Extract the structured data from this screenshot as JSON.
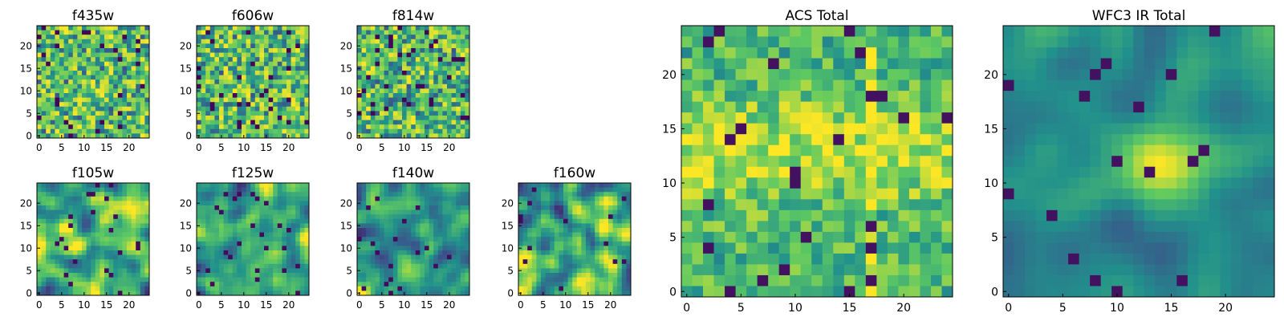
{
  "figure": {
    "colormap": [
      "#440154",
      "#3b528b",
      "#21918c",
      "#5ec962",
      "#fde725"
    ],
    "pixel_grid": 25
  },
  "chart_data": [
    {
      "type": "heatmap",
      "title": "f435w",
      "xticks": [
        "0",
        "5",
        "10",
        "15",
        "20"
      ],
      "yticks": [
        "0",
        "5",
        "10",
        "15",
        "20"
      ],
      "xlim": [
        0,
        25
      ],
      "ylim": [
        0,
        25
      ],
      "texture": "noise",
      "seed": 11
    },
    {
      "type": "heatmap",
      "title": "f606w",
      "xticks": [
        "0",
        "5",
        "10",
        "15",
        "20"
      ],
      "yticks": [
        "0",
        "5",
        "10",
        "15",
        "20"
      ],
      "xlim": [
        0,
        25
      ],
      "ylim": [
        0,
        25
      ],
      "texture": "noise",
      "seed": 23
    },
    {
      "type": "heatmap",
      "title": "f814w",
      "xticks": [
        "0",
        "5",
        "10",
        "15",
        "20"
      ],
      "yticks": [
        "0",
        "5",
        "10",
        "15",
        "20"
      ],
      "xlim": [
        0,
        25
      ],
      "ylim": [
        0,
        25
      ],
      "texture": "noise",
      "seed": 37
    },
    {
      "type": "heatmap",
      "title": "f105w",
      "xticks": [
        "0",
        "5",
        "10",
        "15",
        "20"
      ],
      "yticks": [
        "0",
        "5",
        "10",
        "15",
        "20"
      ],
      "xlim": [
        0,
        25
      ],
      "ylim": [
        0,
        25
      ],
      "texture": "smooth",
      "seed": 41
    },
    {
      "type": "heatmap",
      "title": "f125w",
      "xticks": [
        "0",
        "5",
        "10",
        "15",
        "20"
      ],
      "yticks": [
        "0",
        "5",
        "10",
        "15",
        "20"
      ],
      "xlim": [
        0,
        25
      ],
      "ylim": [
        0,
        25
      ],
      "texture": "smooth",
      "seed": 53
    },
    {
      "type": "heatmap",
      "title": "f140w",
      "xticks": [
        "0",
        "5",
        "10",
        "15",
        "20"
      ],
      "yticks": [
        "0",
        "5",
        "10",
        "15",
        "20"
      ],
      "xlim": [
        0,
        25
      ],
      "ylim": [
        0,
        25
      ],
      "texture": "smooth",
      "seed": 67
    },
    {
      "type": "heatmap",
      "title": "f160w",
      "xticks": [
        "0",
        "5",
        "10",
        "15",
        "20"
      ],
      "yticks": [
        "0",
        "5",
        "10",
        "15",
        "20"
      ],
      "xlim": [
        0,
        25
      ],
      "ylim": [
        0,
        25
      ],
      "texture": "smooth",
      "seed": 79
    },
    {
      "type": "heatmap",
      "title": "ACS Total",
      "xticks": [
        "0",
        "5",
        "10",
        "15",
        "20"
      ],
      "yticks": [
        "0",
        "5",
        "10",
        "15",
        "20"
      ],
      "xlim": [
        0,
        25
      ],
      "ylim": [
        0,
        25
      ],
      "texture": "acs",
      "seed": 83
    },
    {
      "type": "heatmap",
      "title": "WFC3 IR Total",
      "xticks": [
        "0",
        "5",
        "10",
        "15",
        "20"
      ],
      "yticks": [
        "0",
        "5",
        "10",
        "15",
        "20"
      ],
      "xlim": [
        0,
        25
      ],
      "ylim": [
        0,
        25
      ],
      "texture": "ir",
      "seed": 97
    }
  ]
}
